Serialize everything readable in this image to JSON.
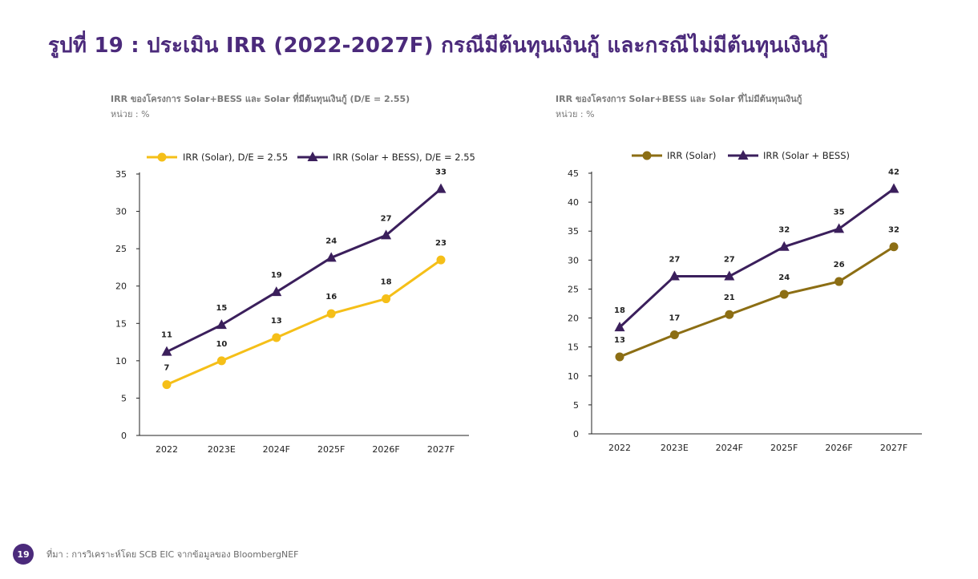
{
  "page": {
    "title": "รูปที่ 19 : ประเมิน IRR (2022-2027F) กรณีมีต้นทุนเงินกู้ และกรณีไม่มีต้นทุนเงินกู้",
    "page_number": "19",
    "source": "ที่มา : การวิเคราะห์โดย SCB EIC จากข้อมูลของ BloombergNEF"
  },
  "captions": [
    {
      "title": "IRR ของโครงการ Solar+BESS และ Solar ที่มีต้นทุนเงินกู้ (D/E = 2.55)",
      "unit": "หน่วย : %"
    },
    {
      "title": "IRR ของโครงการ Solar+BESS และ Solar ที่ไม่มีต้นทุนเงินกู้",
      "unit": "หน่วย : %"
    }
  ],
  "chart_data": [
    {
      "type": "line",
      "categories": [
        "2022",
        "2023E",
        "2024F",
        "2025F",
        "2026F",
        "2027F"
      ],
      "ylim": [
        0,
        35
      ],
      "yticks": [
        0,
        5,
        10,
        15,
        20,
        25,
        30,
        35
      ],
      "grid": false,
      "legend": "top",
      "series": [
        {
          "name": "IRR (Solar), D/E = 2.55",
          "values": [
            6.8,
            10.0,
            13.1,
            16.3,
            18.3,
            23.5
          ],
          "labels": [
            "7",
            "10",
            "13",
            "16",
            "18",
            "23"
          ],
          "color": "#f5bf18",
          "marker": "circle"
        },
        {
          "name": "IRR (Solar + BESS), D/E = 2.55",
          "values": [
            11.2,
            14.8,
            19.2,
            23.8,
            26.8,
            33.0
          ],
          "labels": [
            "11",
            "15",
            "19",
            "24",
            "27",
            "33"
          ],
          "color": "#3b1f5c",
          "marker": "triangle"
        }
      ]
    },
    {
      "type": "line",
      "categories": [
        "2022",
        "2023E",
        "2024F",
        "2025F",
        "2026F",
        "2027F"
      ],
      "ylim": [
        0,
        45
      ],
      "yticks": [
        0,
        5,
        10,
        15,
        20,
        25,
        30,
        35,
        40,
        45
      ],
      "grid": false,
      "legend": "top",
      "series": [
        {
          "name": "IRR (Solar)",
          "values": [
            13.3,
            17.1,
            20.6,
            24.1,
            26.3,
            32.3
          ],
          "labels": [
            "13",
            "17",
            "21",
            "24",
            "26",
            "32"
          ],
          "color": "#8c6e14",
          "marker": "circle"
        },
        {
          "name": "IRR (Solar + BESS)",
          "values": [
            18.4,
            27.2,
            27.2,
            32.3,
            35.4,
            42.3
          ],
          "labels": [
            "18",
            "27",
            "27",
            "32",
            "35",
            "42"
          ],
          "color": "#3b1f5c",
          "marker": "triangle"
        }
      ]
    }
  ]
}
